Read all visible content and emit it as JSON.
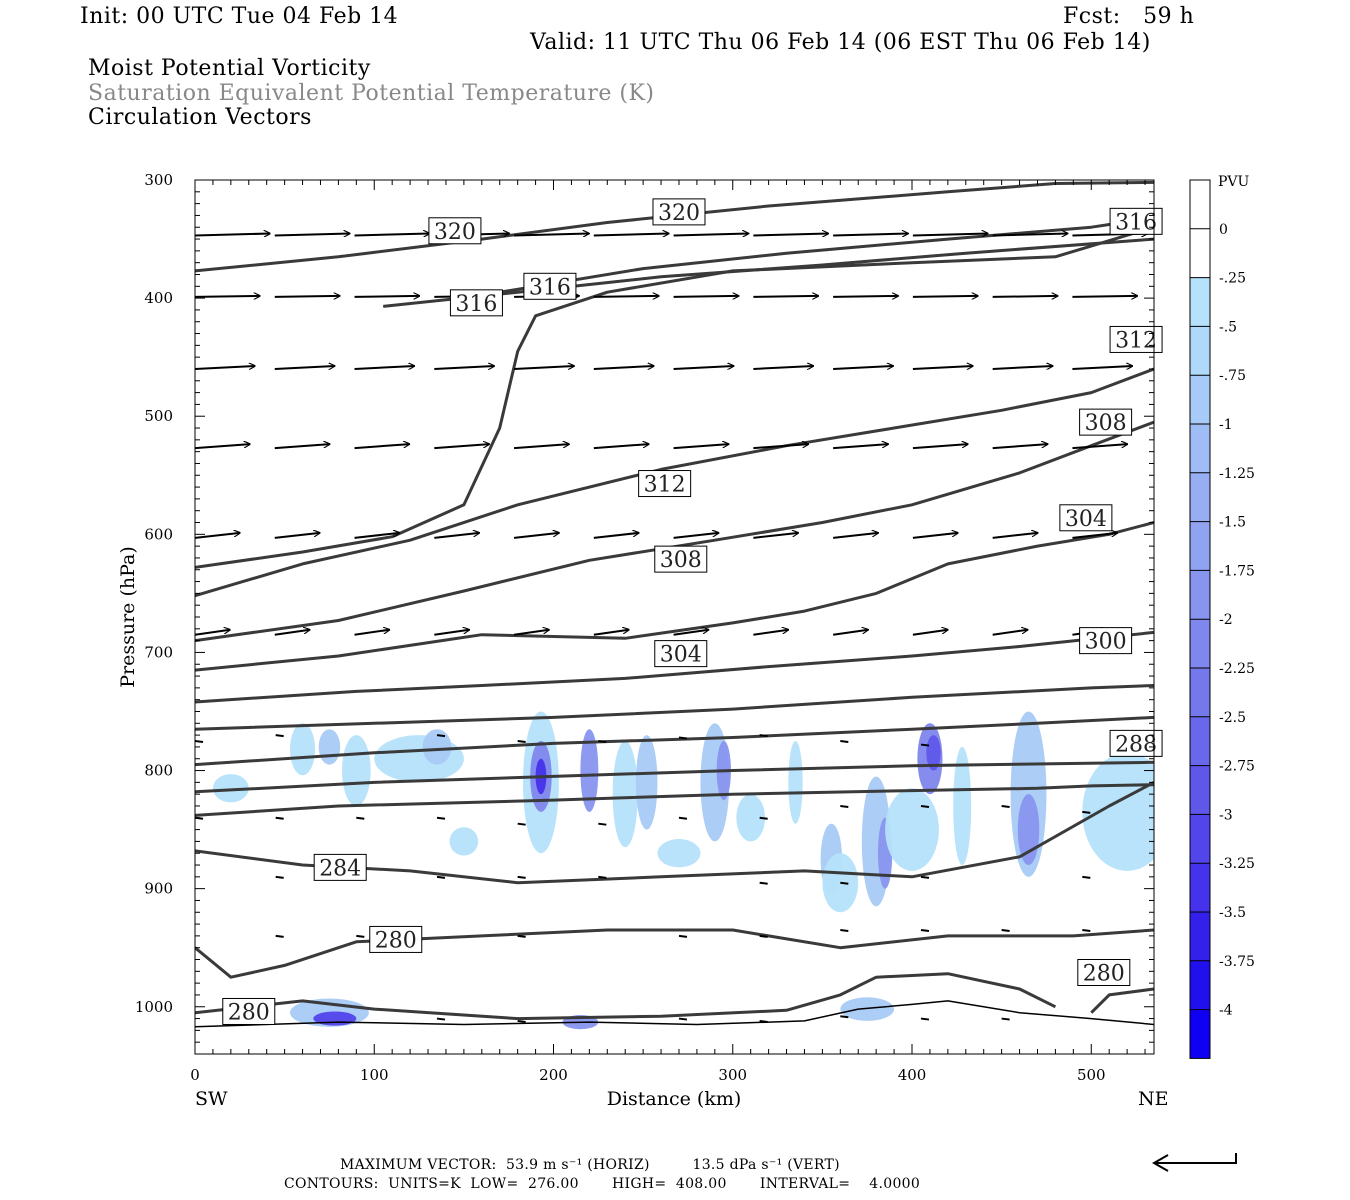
{
  "header": {
    "init": "Init: 00 UTC Tue 04 Feb 14",
    "fcst": "Fcst:   59 h",
    "valid": "Valid: 11 UTC Thu 06 Feb 14 (06 EST Thu 06 Feb 14)",
    "field1": "Moist Potential Vorticity",
    "field2": "Saturation Equivalent Potential Temperature (K)",
    "field3": "Circulation Vectors"
  },
  "footer": {
    "line1": "MAXIMUM VECTOR:  53.9 m s⁻¹ (HORIZ)         13.5 dPa s⁻¹ (VERT)",
    "line2": "CONTOURS:  UNITS=K  LOW=  276.00       HIGH=  408.00       INTERVAL=    4.0000"
  },
  "chart_data": {
    "type": "contour",
    "xlabel": "Distance (km)",
    "ylabel": "Pressure (hPa)",
    "xlim": [
      0,
      535
    ],
    "ylim": [
      1040,
      300
    ],
    "x_ticks": [
      0,
      100,
      200,
      300,
      400,
      500
    ],
    "y_ticks": [
      300,
      400,
      500,
      600,
      700,
      800,
      900,
      1000
    ],
    "x_end_labels": {
      "left": "SW",
      "right": "NE"
    },
    "colorbar": {
      "unit": "PVU",
      "labels": [
        "0",
        "-.25",
        "-.5",
        "-.75",
        "-1",
        "-1.25",
        "-1.5",
        "-1.75",
        "-2",
        "-2.25",
        "-2.5",
        "-2.75",
        "-3",
        "-3.25",
        "-3.5",
        "-3.75",
        "-4"
      ],
      "colors": [
        "#ffffff",
        "#ffffff",
        "#b5e2fa",
        "#b0d8f8",
        "#a8caf6",
        "#9fbdf4",
        "#97aff2",
        "#90a3f0",
        "#8895ee",
        "#7f86ec",
        "#7578eb",
        "#6a68ea",
        "#5f57ea",
        "#5245ea",
        "#4433ea",
        "#3320eb",
        "#2010ee",
        "#1000f3"
      ]
    },
    "contour_labels": [
      {
        "text": "320",
        "x": 145,
        "p": 343
      },
      {
        "text": "320",
        "x": 270,
        "p": 327
      },
      {
        "text": "316",
        "x": 525,
        "p": 335
      },
      {
        "text": "316",
        "x": 157,
        "p": 404
      },
      {
        "text": "316",
        "x": 198,
        "p": 390
      },
      {
        "text": "312",
        "x": 525,
        "p": 435
      },
      {
        "text": "308",
        "x": 508,
        "p": 505
      },
      {
        "text": "312",
        "x": 262,
        "p": 557
      },
      {
        "text": "304",
        "x": 497,
        "p": 586
      },
      {
        "text": "308",
        "x": 271,
        "p": 621
      },
      {
        "text": "304",
        "x": 271,
        "p": 701
      },
      {
        "text": "300",
        "x": 508,
        "p": 690
      },
      {
        "text": "288",
        "x": 525,
        "p": 777
      },
      {
        "text": "284",
        "x": 81,
        "p": 882
      },
      {
        "text": "280",
        "x": 112,
        "p": 943
      },
      {
        "text": "280",
        "x": 507,
        "p": 971
      },
      {
        "text": "280",
        "x": 30,
        "p": 1004
      }
    ]
  }
}
